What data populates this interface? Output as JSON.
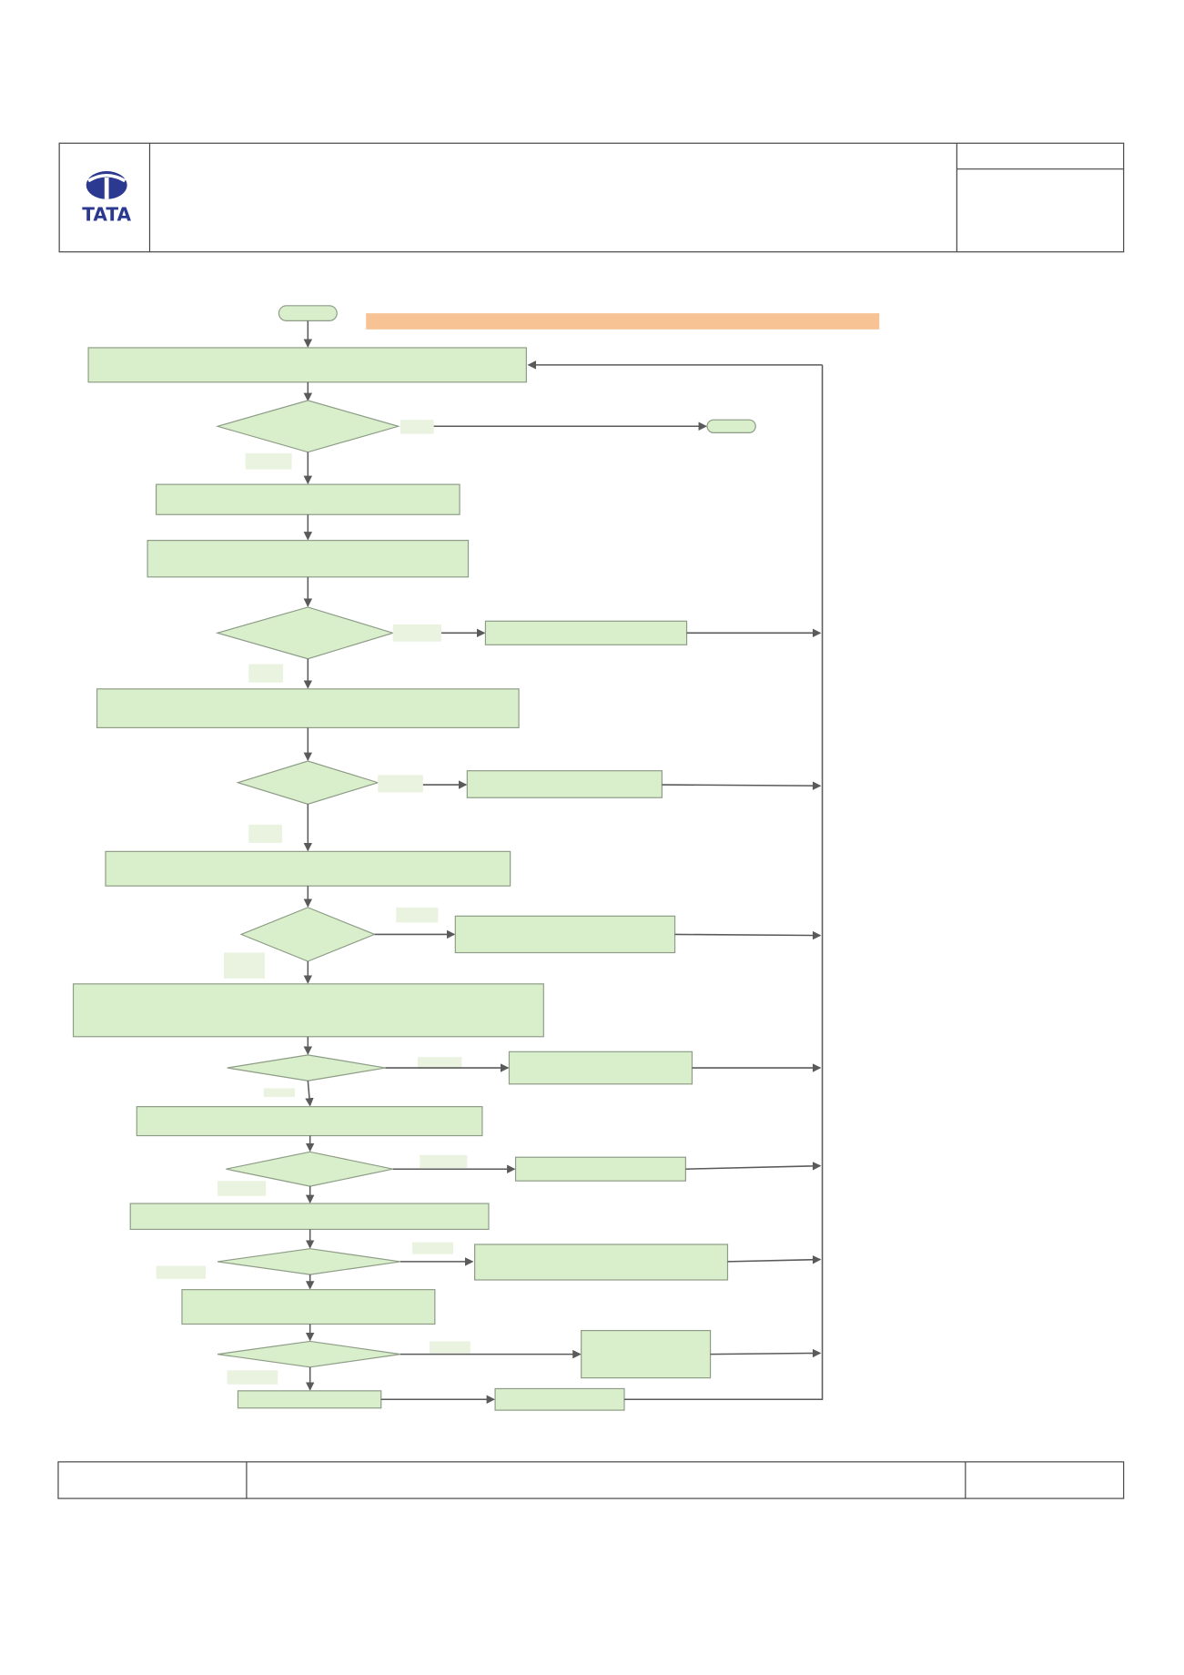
{
  "header": {
    "logo_text": "TATA"
  }
}
